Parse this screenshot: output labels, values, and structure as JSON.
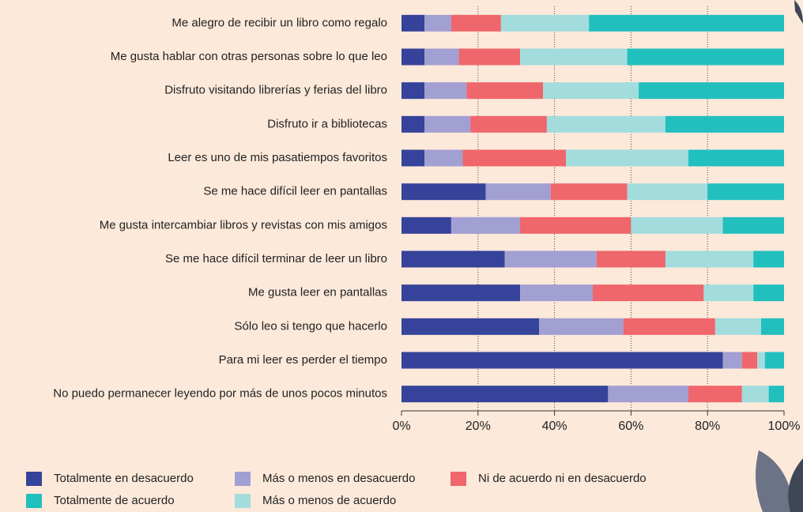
{
  "chart_data": {
    "type": "stacked-bar-horizontal",
    "categories": [
      "Me alegro de recibir un libro como regalo",
      "Me gusta hablar con otras personas sobre lo que leo",
      "Disfruto visitando librerías y ferias del libro",
      "Disfruto ir a bibliotecas",
      "Leer es uno de mis pasatiempos favoritos",
      "Se me hace difícil leer en pantallas",
      "Me gusta intercambiar libros y revistas con mis amigos",
      "Se me hace difícil terminar de leer un libro",
      "Me gusta leer en pantallas",
      "Sólo leo si tengo que hacerlo",
      "Para mi leer es perder el tiempo",
      "No puedo permanecer leyendo por más de unos pocos minutos"
    ],
    "series": [
      {
        "name": "Totalmente en desacuerdo",
        "color": "#36439a",
        "values": [
          6,
          6,
          6,
          6,
          6,
          22,
          13,
          27,
          31,
          36,
          84,
          54
        ]
      },
      {
        "name": "Más o menos en desacuerdo",
        "color": "#a29fd3",
        "values": [
          7,
          9,
          11,
          12,
          10,
          17,
          18,
          24,
          19,
          22,
          5,
          21
        ]
      },
      {
        "name": "Ni de acuerdo ni en desacuerdo",
        "color": "#ef666c",
        "values": [
          13,
          16,
          20,
          20,
          27,
          20,
          29,
          18,
          29,
          24,
          4,
          14
        ]
      },
      {
        "name": "Más o menos de acuerdo",
        "color": "#a3dcdc",
        "values": [
          23,
          28,
          25,
          31,
          32,
          21,
          24,
          23,
          13,
          12,
          2,
          7
        ]
      },
      {
        "name": "Totalmente de acuerdo",
        "color": "#22bfbf",
        "values": [
          51,
          41,
          38,
          31,
          25,
          20,
          16,
          8,
          8,
          6,
          5,
          4
        ]
      }
    ],
    "xlim": [
      0,
      100
    ],
    "xticks": [
      {
        "value": 0,
        "label": "0%"
      },
      {
        "value": 20,
        "label": "20%"
      },
      {
        "value": 40,
        "label": "40%"
      },
      {
        "value": 60,
        "label": "60%"
      },
      {
        "value": 80,
        "label": "80%"
      },
      {
        "value": 100,
        "label": "100%"
      }
    ],
    "grid": true
  }
}
